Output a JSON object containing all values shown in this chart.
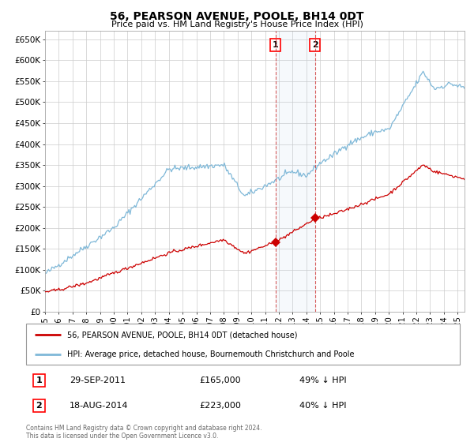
{
  "title": "56, PEARSON AVENUE, POOLE, BH14 0DT",
  "subtitle": "Price paid vs. HM Land Registry's House Price Index (HPI)",
  "hpi_color": "#7fb8d8",
  "price_color": "#cc0000",
  "background_color": "#ffffff",
  "grid_color": "#cccccc",
  "ylim": [
    0,
    670000
  ],
  "yticks": [
    0,
    50000,
    100000,
    150000,
    200000,
    250000,
    300000,
    350000,
    400000,
    450000,
    500000,
    550000,
    600000,
    650000
  ],
  "ytick_labels": [
    "£0",
    "£50K",
    "£100K",
    "£150K",
    "£200K",
    "£250K",
    "£300K",
    "£350K",
    "£400K",
    "£450K",
    "£500K",
    "£550K",
    "£600K",
    "£650K"
  ],
  "xlim_start": 1995.0,
  "xlim_end": 2025.5,
  "sale1_date": 2011.75,
  "sale1_price": 165000,
  "sale2_date": 2014.625,
  "sale2_price": 223000,
  "legend_line1": "56, PEARSON AVENUE, POOLE, BH14 0DT (detached house)",
  "legend_line2": "HPI: Average price, detached house, Bournemouth Christchurch and Poole",
  "annotation1_num": "1",
  "annotation1_date": "29-SEP-2011",
  "annotation1_price": "£165,000",
  "annotation1_hpi": "49% ↓ HPI",
  "annotation2_num": "2",
  "annotation2_date": "18-AUG-2014",
  "annotation2_price": "£223,000",
  "annotation2_hpi": "40% ↓ HPI",
  "footer": "Contains HM Land Registry data © Crown copyright and database right 2024.\nThis data is licensed under the Open Government Licence v3.0."
}
